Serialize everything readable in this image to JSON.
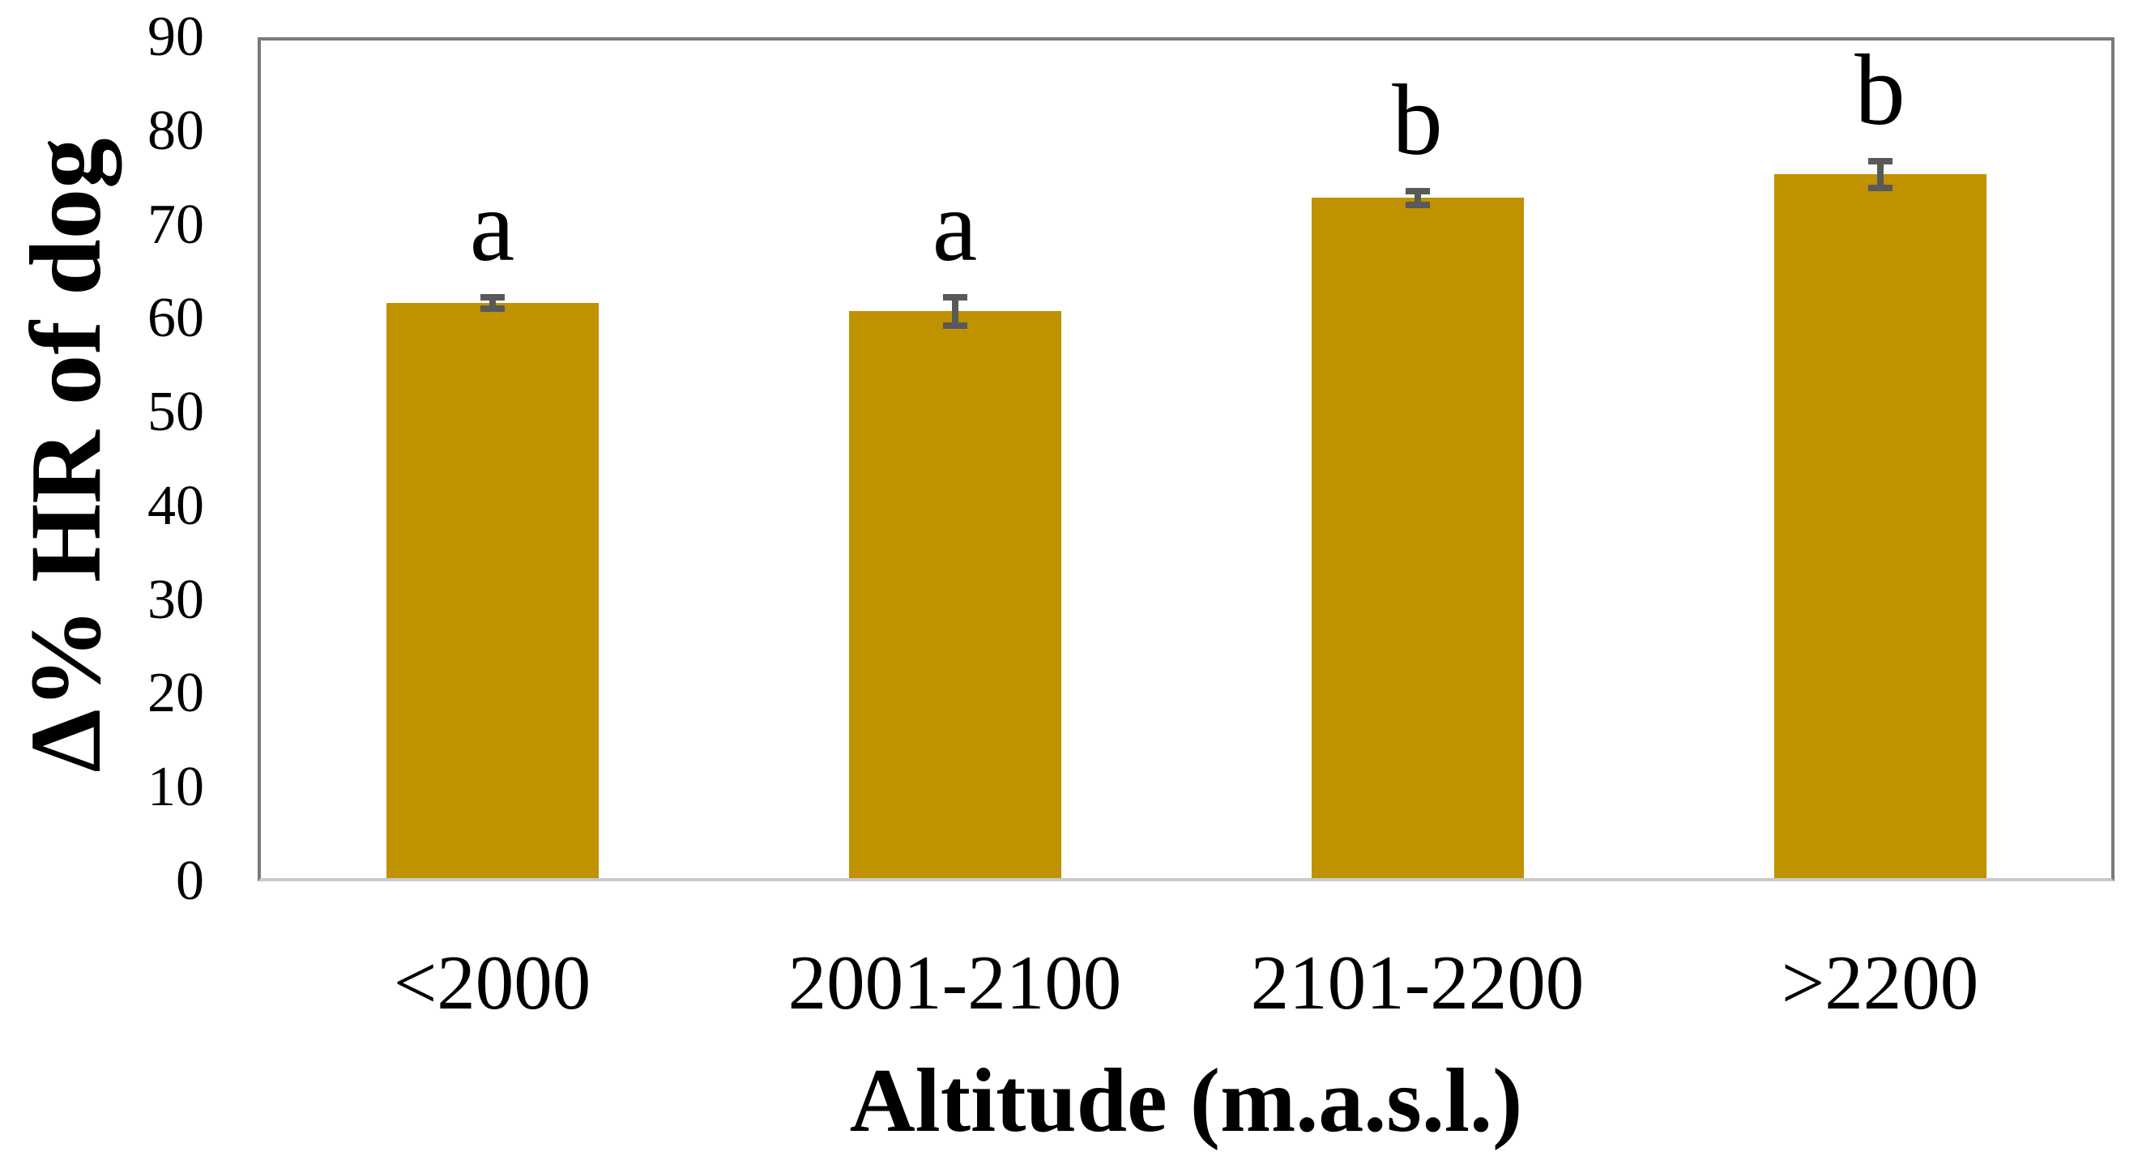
{
  "figure": {
    "background_color": "#ffffff"
  },
  "chart_data": {
    "type": "bar",
    "title": "",
    "xlabel": "Altitude (m.a.s.l.)",
    "ylabel": "Δ% HR of dog",
    "categories": [
      "<2000",
      "2001-2100",
      "2101-2200",
      ">2200"
    ],
    "values": [
      61.8,
      60.9,
      73.1,
      75.6
    ],
    "errors": [
      1.0,
      1.9,
      1.1,
      1.8
    ],
    "significance_letters": [
      "a",
      "a",
      "b",
      "b"
    ],
    "ylim": [
      0,
      90
    ],
    "yticks": [
      0,
      10,
      20,
      30,
      40,
      50,
      60,
      70,
      80,
      90
    ],
    "grid": false,
    "legend": false,
    "bar_color": "#C09200",
    "error_bar_color": "#595959",
    "plot_border_color": "#7a7a7a",
    "axis_line_bottom_color": "#c9c9c9",
    "text_color": "#000000"
  }
}
